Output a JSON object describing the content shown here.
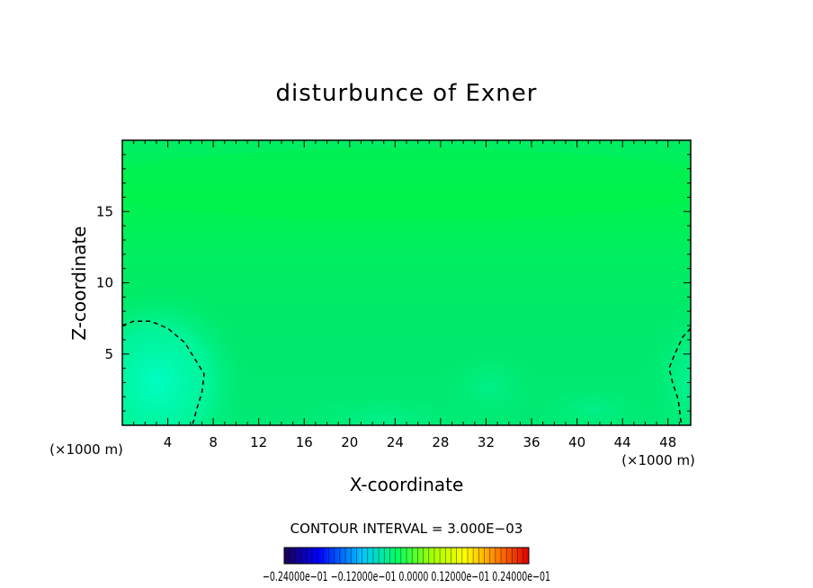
{
  "chart_data": {
    "type": "contour",
    "title": "disturbunce of Exner",
    "xlabel": "X-coordinate",
    "ylabel": "Z-coordinate",
    "x_unit_left": "(×1000 m)",
    "x_unit_right": "(×1000 m)",
    "xlim": [
      0,
      50
    ],
    "ylim": [
      0,
      20
    ],
    "x_ticks": [
      4,
      8,
      12,
      16,
      20,
      24,
      28,
      32,
      36,
      40,
      44,
      48
    ],
    "x_tick_labels": [
      "4",
      "8",
      "12",
      "16",
      "20",
      "24",
      "28",
      "32",
      "36",
      "40",
      "44",
      "48"
    ],
    "y_ticks": [
      5,
      10,
      15
    ],
    "y_tick_labels": [
      "5",
      "10",
      "15"
    ],
    "contour_interval_text": "CONTOUR INTERVAL = 3.000E−03",
    "colorbar": {
      "range": [
        -0.024,
        0.024
      ],
      "labels_text": "−0.24000e−01 −0.12000e−01 0.0000 0.12000e−01 0.24000e−01",
      "stops": [
        "#1a0050",
        "#0000ff",
        "#00c8ff",
        "#00ff64",
        "#a0ff00",
        "#ffff00",
        "#ff8000",
        "#e00000"
      ]
    },
    "field_colors": {
      "background": "#00ee66",
      "upper_band": "#00f05a",
      "mid_band": "#00e870",
      "low_band": "#00ea78",
      "cell_left": "#00ffc0",
      "cell_right": "#00f8a0",
      "bottom_blob": "#00f094"
    },
    "zero_contours": [
      {
        "name": "left-zero-contour",
        "points": [
          [
            0,
            7.0
          ],
          [
            1,
            7.3
          ],
          [
            2.5,
            7.3
          ],
          [
            4,
            6.8
          ],
          [
            5.5,
            5.8
          ],
          [
            6.5,
            4.5
          ],
          [
            7.2,
            3.6
          ],
          [
            7.0,
            2.3
          ],
          [
            6.5,
            1.0
          ],
          [
            6.2,
            0.1
          ]
        ]
      },
      {
        "name": "right-zero-contour",
        "points": [
          [
            50,
            6.8
          ],
          [
            49.3,
            6.2
          ],
          [
            48.6,
            5.0
          ],
          [
            48.1,
            4.0
          ],
          [
            48.4,
            3.0
          ],
          [
            48.9,
            1.8
          ],
          [
            49.1,
            0.5
          ],
          [
            49.2,
            0
          ]
        ]
      }
    ]
  }
}
